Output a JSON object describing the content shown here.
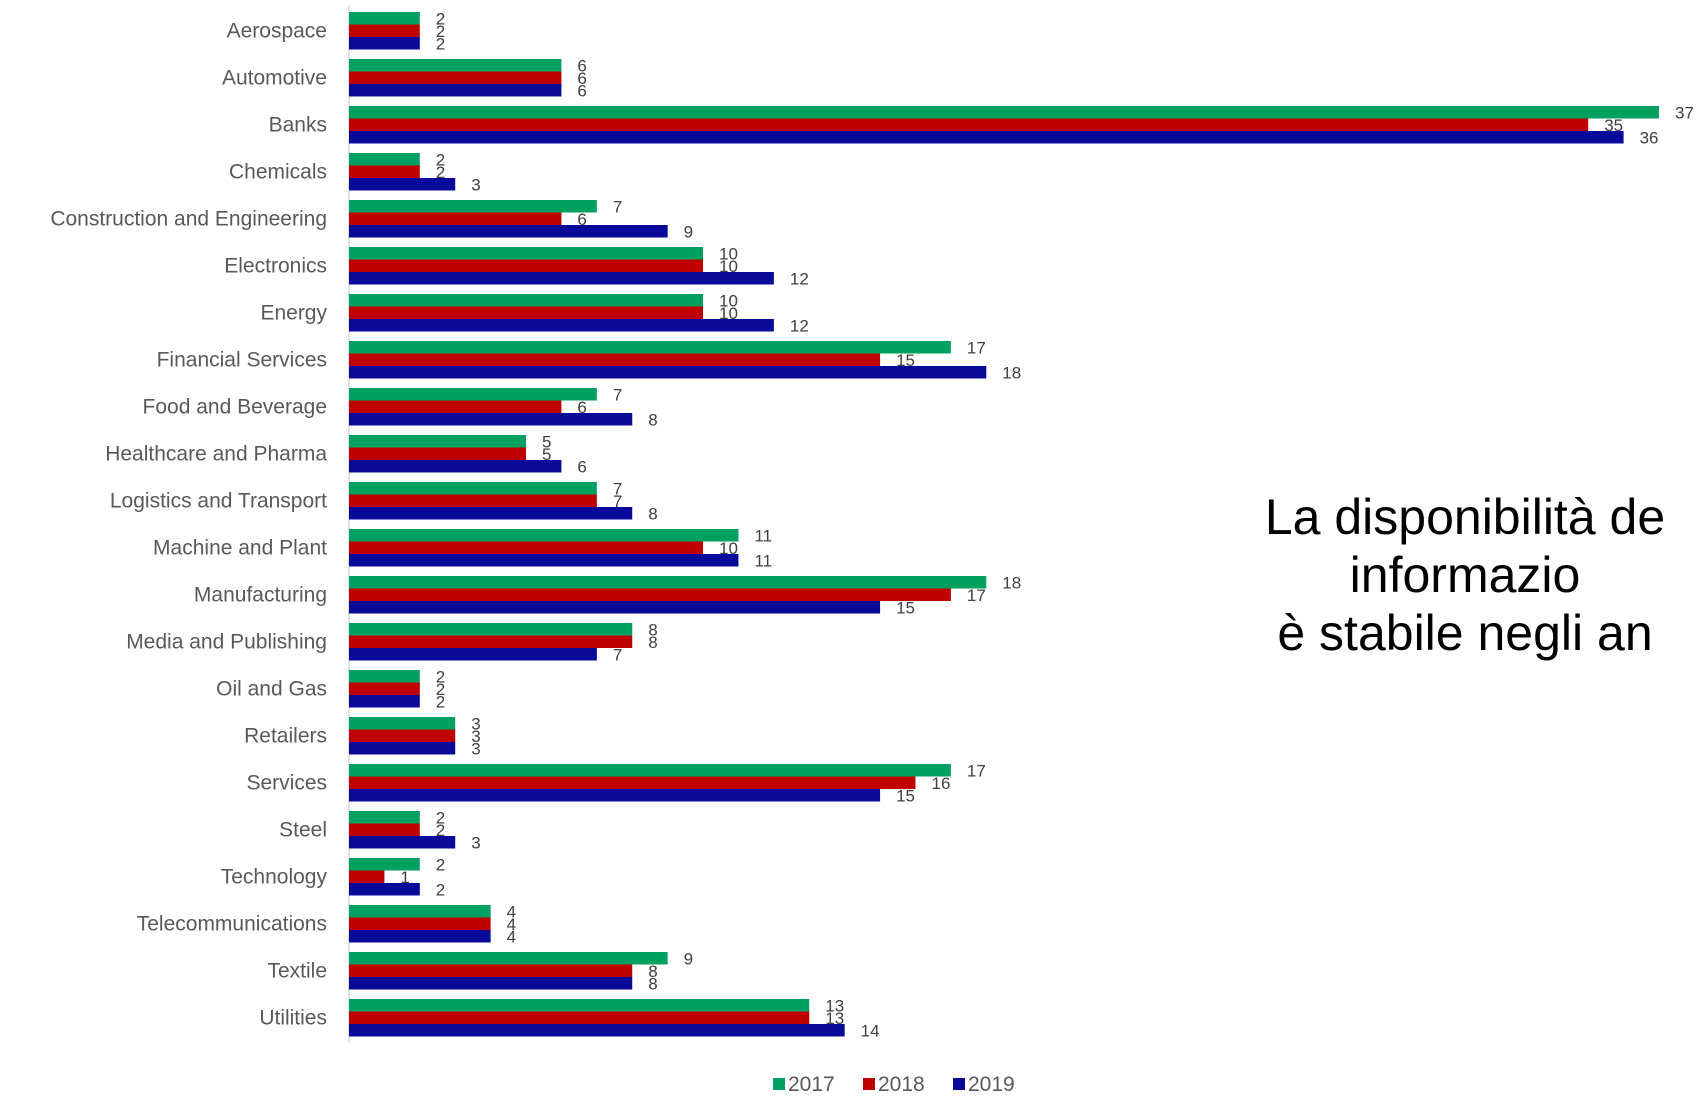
{
  "chart_data": {
    "type": "bar",
    "orientation": "horizontal",
    "categories": [
      "Aerospace",
      "Automotive",
      "Banks",
      "Chemicals",
      "Construction and Engineering",
      "Electronics",
      "Energy",
      "Financial Services",
      "Food and Beverage",
      "Healthcare and Pharma",
      "Logistics and Transport",
      "Machine and Plant",
      "Manufacturing",
      "Media and Publishing",
      "Oil and Gas",
      "Retailers",
      "Services",
      "Steel",
      "Technology",
      "Telecommunications",
      "Textile",
      "Utilities"
    ],
    "series": [
      {
        "name": "2017",
        "color": "#00A060",
        "values": [
          2,
          6,
          37,
          2,
          7,
          10,
          10,
          17,
          7,
          5,
          7,
          11,
          18,
          8,
          2,
          3,
          17,
          2,
          2,
          4,
          9,
          13
        ]
      },
      {
        "name": "2018",
        "color": "#C00000",
        "values": [
          2,
          6,
          35,
          2,
          6,
          10,
          10,
          15,
          6,
          5,
          7,
          10,
          17,
          8,
          2,
          3,
          16,
          2,
          1,
          4,
          8,
          13
        ]
      },
      {
        "name": "2019",
        "color": "#0A0A9A",
        "values": [
          2,
          6,
          36,
          3,
          9,
          12,
          12,
          18,
          8,
          6,
          8,
          11,
          15,
          7,
          2,
          3,
          15,
          3,
          2,
          4,
          8,
          14
        ]
      }
    ],
    "xlim": [
      0,
      37
    ],
    "grid": false,
    "legend_position": "bottom"
  },
  "side_text": {
    "line1": "La disponibilità de",
    "line2": "informazio",
    "line3": "è stabile negli an"
  }
}
